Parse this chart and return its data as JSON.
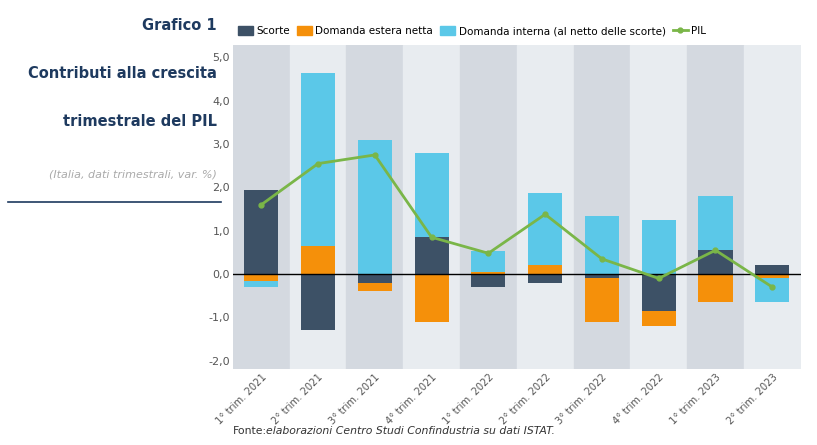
{
  "categories": [
    "1° trim. 2021",
    "2° trim. 2021",
    "3° trim. 2021",
    "4° trim. 2021",
    "1° trim. 2022",
    "2° trim. 2022",
    "3° trim. 2022",
    "4° trim. 2022",
    "1° trim. 2023",
    "2° trim. 2023"
  ],
  "scorte": [
    1.95,
    -1.3,
    -0.2,
    0.85,
    -0.3,
    -0.2,
    -0.1,
    -0.85,
    0.55,
    0.2
  ],
  "dom_estera": [
    -0.15,
    0.65,
    -0.2,
    -1.1,
    0.05,
    0.22,
    -1.0,
    -0.35,
    -0.65,
    -0.1
  ],
  "dom_interna": [
    -0.15,
    4.0,
    3.1,
    1.95,
    0.48,
    1.65,
    1.35,
    1.25,
    1.25,
    -0.55
  ],
  "pil": [
    1.6,
    2.55,
    2.75,
    0.85,
    0.48,
    1.38,
    0.35,
    -0.1,
    0.55,
    -0.3
  ],
  "color_scorte": "#3d5166",
  "color_dom_estera": "#f5900a",
  "color_dom_interna": "#5bc8e8",
  "color_pil": "#7ab648",
  "title_line1": "Grafico 1",
  "title_line2": "Contributi alla crescita",
  "title_line3": "trimestrale del PIL",
  "subtitle": "(Italia, dati trimestrali, var. %)",
  "ylim": [
    -2.2,
    5.3
  ],
  "yticks": [
    -2.0,
    -1.0,
    0.0,
    1.0,
    2.0,
    3.0,
    4.0,
    5.0
  ],
  "footer": "elaborazioni Centro Studi Confindustria su dati ISTAT.",
  "footer_bold": "Fonte:",
  "legend_labels": [
    "Scorte",
    "Domanda estera netta",
    "Domanda interna (al netto delle scorte)",
    "PIL"
  ],
  "background_color": "#ffffff",
  "chart_bg_light": "#e8ecf0",
  "chart_bg_dark": "#d4d9e0",
  "title_color": "#1e3a5f",
  "subtitle_color": "#aaaaaa"
}
